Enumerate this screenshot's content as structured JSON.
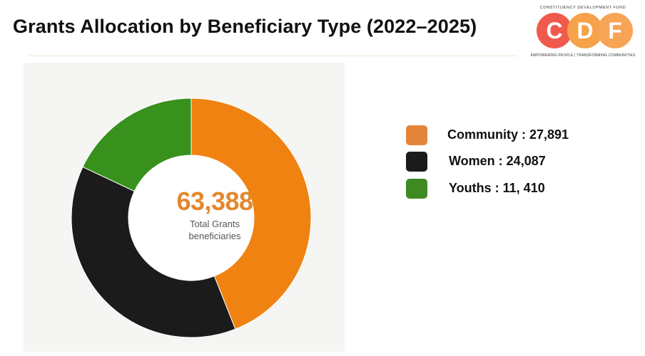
{
  "title": "Grants Allocation by Beneficiary Type (2022–2025)",
  "logo": {
    "top_text": "CONSTITUENCY DEVELOPMENT FUND",
    "letters": [
      "C",
      "D",
      "F"
    ],
    "colors": [
      "#ef5a4c",
      "#f5a24a",
      "#f7a455"
    ],
    "tagline": "EMPOWERING PEOPLE | TRANSFORMING COMMUNITIES"
  },
  "chart_data": {
    "type": "pie",
    "donut": true,
    "categories": [
      "Community",
      "Women",
      "Youths"
    ],
    "values": [
      27891,
      24087,
      11410
    ],
    "colors": [
      "#ef8210",
      "#1b1b1b",
      "#37911c"
    ],
    "center_value": "63,388",
    "center_label_lines": [
      "Total Grants",
      "beneficiaries"
    ],
    "legend": [
      {
        "label": "Community  : 27,891",
        "color": "#e4853a"
      },
      {
        "label": "Women : 24,087",
        "color": "#1b1b1b"
      },
      {
        "label": "Youths : 11, 410",
        "color": "#3e8a22"
      }
    ]
  }
}
